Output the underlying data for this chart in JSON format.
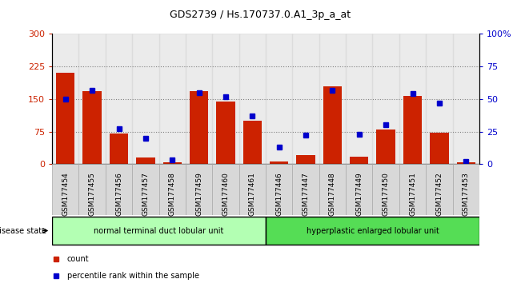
{
  "title": "GDS2739 / Hs.170737.0.A1_3p_a_at",
  "samples": [
    "GSM177454",
    "GSM177455",
    "GSM177456",
    "GSM177457",
    "GSM177458",
    "GSM177459",
    "GSM177460",
    "GSM177461",
    "GSM177446",
    "GSM177447",
    "GSM177448",
    "GSM177449",
    "GSM177450",
    "GSM177451",
    "GSM177452",
    "GSM177453"
  ],
  "counts": [
    210,
    168,
    70,
    15,
    5,
    168,
    145,
    100,
    7,
    20,
    180,
    18,
    80,
    158,
    72,
    5
  ],
  "percentiles": [
    50,
    57,
    27,
    20,
    3,
    55,
    52,
    37,
    13,
    22,
    57,
    23,
    30,
    54,
    47,
    2
  ],
  "group1_label": "normal terminal duct lobular unit",
  "group2_label": "hyperplastic enlarged lobular unit",
  "group1_count": 8,
  "group2_count": 8,
  "bar_color": "#cc2200",
  "dot_color": "#0000cc",
  "left_yticks": [
    0,
    75,
    150,
    225,
    300
  ],
  "right_yticks": [
    0,
    25,
    50,
    75,
    100
  ],
  "ylim_left": [
    0,
    300
  ],
  "ylim_right": [
    0,
    100
  ],
  "group1_bg": "#b3ffb3",
  "group2_bg": "#55dd55",
  "disease_label": "disease state",
  "legend_count": "count",
  "legend_percentile": "percentile rank within the sample",
  "col_bg": "#d8d8d8"
}
